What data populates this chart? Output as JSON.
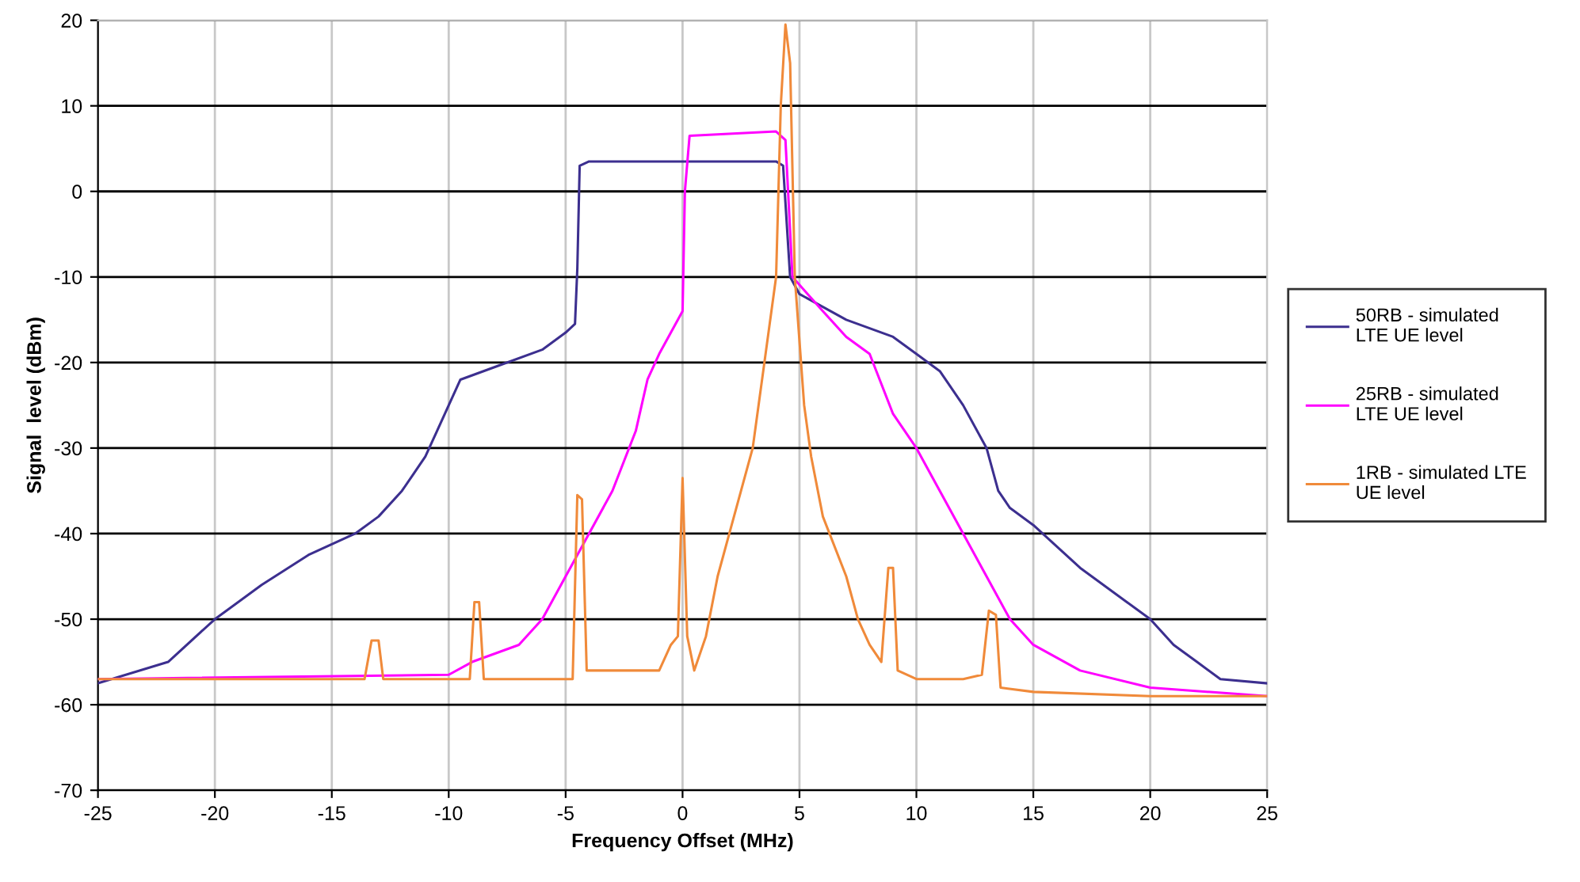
{
  "chart_data": {
    "type": "line",
    "xlabel": "Frequency Offset (MHz)",
    "ylabel": "Signal  level (dBm)",
    "xlim": [
      -25,
      25
    ],
    "xticks": [
      -25,
      -20,
      -15,
      -10,
      -5,
      0,
      5,
      10,
      15,
      20,
      25
    ],
    "ylim": [
      -70,
      20
    ],
    "yticks": [
      -70,
      -60,
      -50,
      -40,
      -30,
      -20,
      -10,
      0,
      10,
      20
    ],
    "grid": true,
    "legend": "right",
    "marker": "none",
    "line_style": "solid",
    "series": [
      {
        "name": "50RB - simulated\nLTE UE level",
        "color": "#3c2f8f",
        "x": [
          -25,
          -22,
          -20,
          -18,
          -16,
          -14,
          -13,
          -12,
          -11.5,
          -11,
          -10.5,
          -10,
          -9.5,
          -8,
          -6,
          -5,
          -4.6,
          -4.5,
          -4.4,
          -4,
          0,
          4,
          4.3,
          4.6,
          5,
          7,
          9,
          10,
          11,
          12,
          13,
          13.5,
          14,
          15,
          17,
          19,
          20,
          21,
          22,
          23,
          25
        ],
        "values": [
          -57.5,
          -55,
          -50,
          -46,
          -42.5,
          -40,
          -38,
          -35,
          -33,
          -31,
          -28,
          -25,
          -22,
          -20.5,
          -18.5,
          -16.5,
          -15.5,
          -9,
          3,
          3.5,
          3.5,
          3.5,
          3,
          -10,
          -12,
          -15,
          -17,
          -19,
          -21,
          -25,
          -30,
          -35,
          -37,
          -39,
          -44,
          -48,
          -50,
          -53,
          -55,
          -57,
          -57.5
        ]
      },
      {
        "name": "25RB - simulated\nLTE UE level",
        "color": "#ff00ff",
        "x": [
          -25,
          -10,
          -9,
          -7,
          -6,
          -5,
          -4,
          -3,
          -2,
          -1.5,
          -1,
          0,
          0.1,
          0.3,
          4,
          4.4,
          4.7,
          6,
          7,
          8,
          9,
          10,
          11,
          12,
          13,
          14,
          15,
          17,
          20,
          25
        ],
        "values": [
          -57,
          -56.5,
          -55,
          -53,
          -50,
          -45,
          -40,
          -35,
          -28,
          -22,
          -19,
          -14,
          0,
          6.5,
          7,
          6,
          -10,
          -14,
          -17,
          -19,
          -26,
          -30,
          -35,
          -40,
          -45,
          -50,
          -53,
          -56,
          -58,
          -59
        ]
      },
      {
        "name": "1RB - simulated LTE\nUE level",
        "color": "#f08a3a",
        "x": [
          -25,
          -13.6,
          -13.3,
          -13.0,
          -12.8,
          -9.1,
          -8.9,
          -8.7,
          -8.5,
          -4.7,
          -4.5,
          -4.3,
          -4.1,
          -1,
          -0.5,
          -0.2,
          0,
          0.2,
          0.5,
          1,
          1.5,
          2,
          2.5,
          3,
          3.5,
          4,
          4.2,
          4.4,
          4.6,
          4.8,
          5.2,
          5.5,
          6,
          7,
          7.5,
          8,
          8.5,
          8.8,
          9,
          9.2,
          10,
          12,
          12.8,
          13.1,
          13.4,
          13.6,
          15,
          20,
          25
        ],
        "values": [
          -57,
          -57,
          -52.5,
          -52.5,
          -57,
          -57,
          -48,
          -48,
          -57,
          -57,
          -35.5,
          -36,
          -56,
          -56,
          -53,
          -52,
          -33.5,
          -52,
          -56,
          -52,
          -45,
          -40,
          -35,
          -30,
          -20,
          -10,
          10,
          19.5,
          15,
          -10,
          -25,
          -31,
          -38,
          -45,
          -50,
          -53,
          -55,
          -44,
          -44,
          -56,
          -57,
          -57,
          -56.5,
          -49,
          -49.5,
          -58,
          -58.5,
          -59,
          -59
        ]
      }
    ]
  }
}
